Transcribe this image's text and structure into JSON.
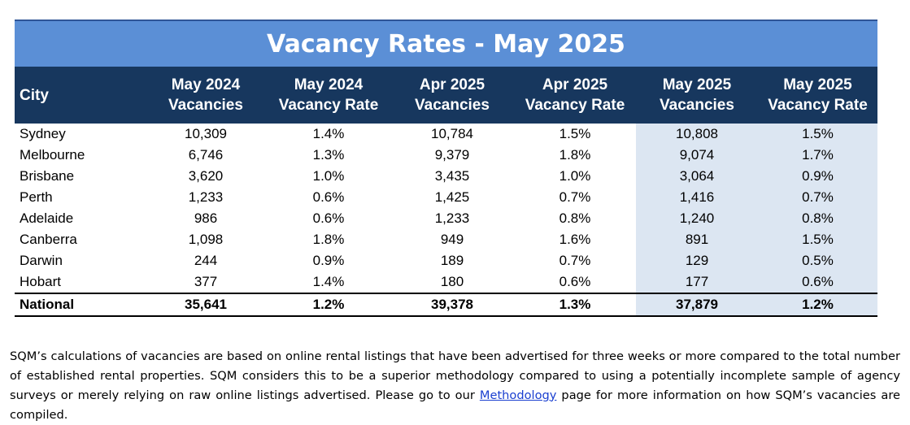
{
  "title": "Vacancy Rates - May 2025",
  "columns": {
    "city": "City",
    "c1a": "May 2024",
    "c1b": "Vacancies",
    "c2a": "May 2024",
    "c2b": "Vacancy Rate",
    "c3a": "Apr 2025",
    "c3b": "Vacancies",
    "c4a": "Apr 2025",
    "c4b": "Vacancy Rate",
    "c5a": "May 2025",
    "c5b": "Vacancies",
    "c6a": "May 2025",
    "c6b": "Vacancy Rate"
  },
  "rows": [
    [
      "Sydney",
      "10,309",
      "1.4%",
      "10,784",
      "1.5%",
      "10,808",
      "1.5%"
    ],
    [
      "Melbourne",
      "6,746",
      "1.3%",
      "9,379",
      "1.8%",
      "9,074",
      "1.7%"
    ],
    [
      "Brisbane",
      "3,620",
      "1.0%",
      "3,435",
      "1.0%",
      "3,064",
      "0.9%"
    ],
    [
      "Perth",
      "1,233",
      "0.6%",
      "1,425",
      "0.7%",
      "1,416",
      "0.7%"
    ],
    [
      "Adelaide",
      "986",
      "0.6%",
      "1,233",
      "0.8%",
      "1,240",
      "0.8%"
    ],
    [
      "Canberra",
      "1,098",
      "1.8%",
      "949",
      "1.6%",
      "891",
      "1.5%"
    ],
    [
      "Darwin",
      "244",
      "0.9%",
      "189",
      "0.7%",
      "129",
      "0.5%"
    ],
    [
      "Hobart",
      "377",
      "1.4%",
      "180",
      "0.6%",
      "177",
      "0.6%"
    ]
  ],
  "national": [
    "National",
    "35,641",
    "1.2%",
    "39,378",
    "1.3%",
    "37,879",
    "1.2%"
  ],
  "footnote": {
    "text_before": "SQM’s calculations of vacancies are based on online rental listings that have been advertised for three weeks or more compared to the total number of established rental properties. SQM considers this to be a superior methodology compared to using a potentially incomplete sample of agency surveys or merely relying on raw online listings advertised. Please go to our ",
    "link": "Methodology",
    "text_after": " page for more information on how SQM’s vacancies are compiled."
  },
  "colors": {
    "title_bg": "#5b8fd6",
    "header_bg": "#17375e",
    "highlight_bg": "#dce6f2",
    "link": "#1a3fd0"
  }
}
